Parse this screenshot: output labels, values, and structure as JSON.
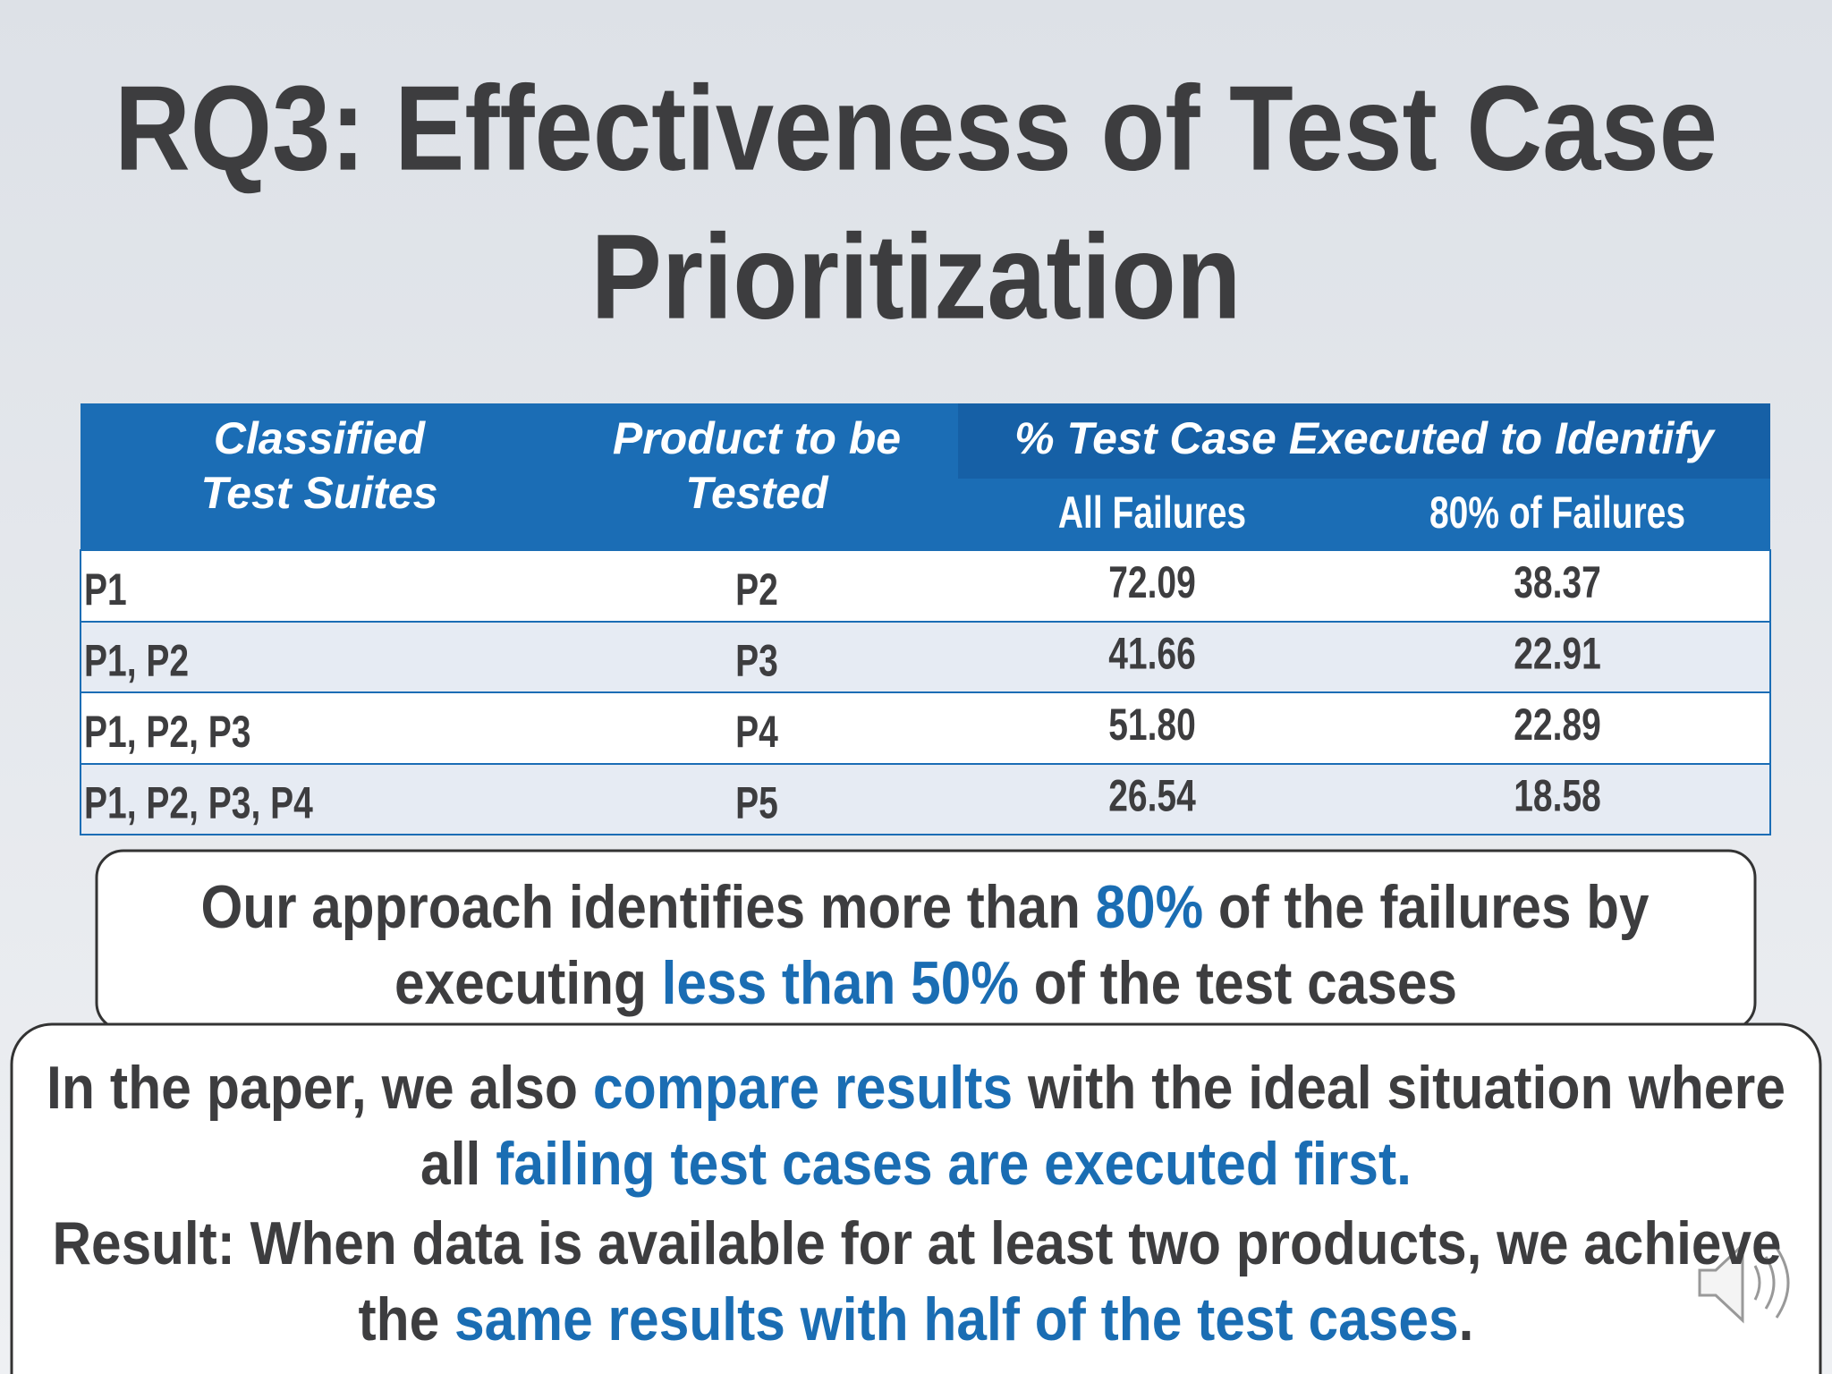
{
  "header": {
    "title": [
      "RQ3: Effectiveness of Test Case",
      "Prioritization"
    ]
  },
  "table": {
    "columns": [
      [
        "Classified",
        "Test Suites"
      ],
      [
        "Product to be",
        "Tested"
      ],
      [
        "% Test Case Executed to Identify"
      ]
    ],
    "subcolumns": [
      "All Failures",
      "80% of Failures"
    ],
    "rows": [
      [
        "P1",
        "P2",
        "72.09",
        "38.37"
      ],
      [
        "P1, P2",
        "P3",
        "41.66",
        "22.91"
      ],
      [
        "P1, P2, P3",
        "P4",
        "51.80",
        "22.89"
      ],
      [
        "P1, P2, P3, P4",
        "P5",
        "26.54",
        "18.58"
      ]
    ]
  },
  "callouts": [
    {
      "lines": [
        [
          {
            "text": "Our approach identifies more than ",
            "highlight": false
          },
          {
            "text": "80%",
            "highlight": true
          },
          {
            "text": " of the failures by",
            "highlight": false
          }
        ],
        [
          {
            "text": "executing ",
            "highlight": false
          },
          {
            "text": "less than 50%",
            "highlight": true
          },
          {
            "text": " of the test cases",
            "highlight": false
          }
        ]
      ]
    },
    {
      "lines": [
        [
          {
            "text": "In the paper, we also ",
            "highlight": false
          },
          {
            "text": "compare results",
            "highlight": true
          },
          {
            "text": " with the ideal situation where",
            "highlight": false
          }
        ],
        [
          {
            "text": "all ",
            "highlight": false
          },
          {
            "text": "failing test cases are executed first.",
            "highlight": true
          }
        ],
        [
          {
            "text": "Result: When data is available for at least two products, we achieve",
            "highlight": false
          }
        ],
        [
          {
            "text": "the ",
            "highlight": false
          },
          {
            "text": "same results with half of the test cases",
            "highlight": true
          },
          {
            "text": ".",
            "highlight": false
          }
        ]
      ]
    }
  ]
}
